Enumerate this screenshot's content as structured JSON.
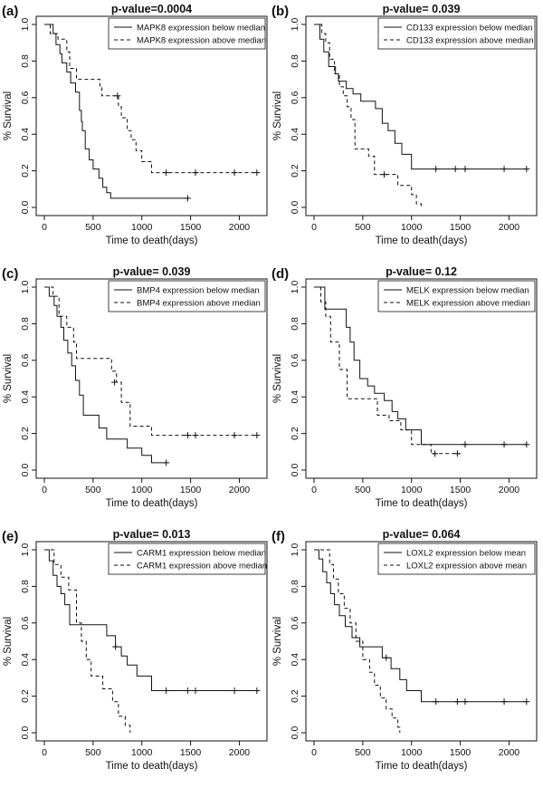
{
  "figure": {
    "time_label": "Time to death(days)",
    "y_label": "% Survival"
  },
  "colors": {
    "ink": "#111111",
    "background": "#ffffff"
  },
  "chart_data": [
    {
      "type": "line",
      "panel": "(a)",
      "title": "p-value=0.0004",
      "xlabel": "Time to death(days)",
      "ylabel": "% Survival",
      "xlim": [
        0,
        2200
      ],
      "ylim": [
        0,
        1.0
      ],
      "xticks": [
        0,
        500,
        1000,
        1500,
        2000
      ],
      "xtick_labels": [
        "0",
        "500",
        "1000",
        "1500",
        "2000"
      ],
      "yticks": [
        0,
        0.2,
        0.4,
        0.6,
        0.8,
        1.0
      ],
      "ytick_labels": [
        "0.0",
        "0.2",
        "0.4",
        "0.6",
        "0.8",
        "1.0"
      ],
      "series": [
        {
          "name": "MAPK8 expression below median",
          "style": "solid",
          "x": [
            0,
            90,
            120,
            160,
            180,
            230,
            270,
            320,
            360,
            380,
            390,
            420,
            460,
            500,
            560,
            600,
            640,
            680,
            1470
          ],
          "y": [
            1.0,
            0.95,
            0.89,
            0.84,
            0.79,
            0.74,
            0.68,
            0.63,
            0.53,
            0.47,
            0.42,
            0.32,
            0.26,
            0.21,
            0.16,
            0.11,
            0.08,
            0.05,
            0.05
          ],
          "censor_x": [
            1470
          ],
          "censor_y": [
            0.05
          ]
        },
        {
          "name": "MAPK8 expression above median",
          "style": "dashed",
          "x": [
            0,
            60,
            140,
            230,
            260,
            330,
            570,
            590,
            620,
            760,
            790,
            850,
            890,
            940,
            1000,
            1100,
            2180
          ],
          "y": [
            1.0,
            0.95,
            0.92,
            0.85,
            0.76,
            0.7,
            0.66,
            0.61,
            0.61,
            0.55,
            0.49,
            0.42,
            0.37,
            0.31,
            0.25,
            0.19,
            0.19
          ],
          "censor_x": [
            750,
            1250,
            1550,
            1950,
            2180
          ],
          "censor_y": [
            0.61,
            0.19,
            0.19,
            0.19,
            0.19
          ]
        }
      ]
    },
    {
      "type": "line",
      "panel": "(b)",
      "title": "p-value= 0.039",
      "xlabel": "Time to death(days)",
      "ylabel": "% Survival",
      "xlim": [
        0,
        2200
      ],
      "ylim": [
        0,
        1.0
      ],
      "xticks": [
        0,
        500,
        1000,
        1500,
        2000
      ],
      "xtick_labels": [
        "0",
        "500",
        "1000",
        "1500",
        "2000"
      ],
      "yticks": [
        0,
        0.2,
        0.4,
        0.6,
        0.8,
        1.0
      ],
      "ytick_labels": [
        "0.0",
        "0.2",
        "0.4",
        "0.6",
        "0.8",
        "1.0"
      ],
      "series": [
        {
          "name": "CD133 expression below median",
          "style": "solid",
          "x": [
            0,
            60,
            100,
            150,
            220,
            250,
            330,
            400,
            480,
            630,
            700,
            760,
            830,
            900,
            1000,
            2180
          ],
          "y": [
            1.0,
            0.92,
            0.85,
            0.77,
            0.73,
            0.69,
            0.65,
            0.62,
            0.58,
            0.54,
            0.46,
            0.42,
            0.35,
            0.29,
            0.21,
            0.21
          ],
          "censor_x": [
            1250,
            1450,
            1550,
            1950,
            2180
          ],
          "censor_y": [
            0.21,
            0.21,
            0.21,
            0.21,
            0.21
          ]
        },
        {
          "name": "CD133 expression above median",
          "style": "dashed",
          "x": [
            0,
            80,
            120,
            160,
            210,
            260,
            300,
            340,
            380,
            420,
            560,
            620,
            790,
            860,
            1000,
            1050,
            1100
          ],
          "y": [
            1.0,
            0.95,
            0.9,
            0.81,
            0.73,
            0.66,
            0.61,
            0.55,
            0.48,
            0.32,
            0.28,
            0.18,
            0.18,
            0.12,
            0.07,
            0.02,
            0.0
          ],
          "censor_x": [
            720
          ],
          "censor_y": [
            0.18
          ]
        }
      ]
    },
    {
      "type": "line",
      "panel": "(c)",
      "title": "p-value= 0.039",
      "xlabel": "Time to death(days)",
      "ylabel": "% Survival",
      "xlim": [
        0,
        2200
      ],
      "ylim": [
        0,
        1.0
      ],
      "xticks": [
        0,
        500,
        1000,
        1500,
        2000
      ],
      "xtick_labels": [
        "0",
        "500",
        "1000",
        "1500",
        "2000"
      ],
      "yticks": [
        0,
        0.2,
        0.4,
        0.6,
        0.8,
        1.0
      ],
      "ytick_labels": [
        "0.0",
        "0.2",
        "0.4",
        "0.6",
        "0.8",
        "1.0"
      ],
      "series": [
        {
          "name": "BMP4 expression below median",
          "style": "solid",
          "x": [
            0,
            50,
            100,
            130,
            170,
            200,
            240,
            280,
            320,
            360,
            400,
            560,
            640,
            850,
            1000,
            1100,
            1250
          ],
          "y": [
            1.0,
            0.95,
            0.9,
            0.84,
            0.78,
            0.71,
            0.64,
            0.57,
            0.49,
            0.41,
            0.3,
            0.23,
            0.17,
            0.12,
            0.08,
            0.04,
            0.04
          ],
          "censor_x": [
            1250
          ],
          "censor_y": [
            0.04
          ]
        },
        {
          "name": "BMP4 expression above median",
          "style": "dashed",
          "x": [
            0,
            90,
            150,
            230,
            300,
            330,
            640,
            690,
            740,
            790,
            880,
            1100,
            2180
          ],
          "y": [
            1.0,
            0.95,
            0.84,
            0.78,
            0.7,
            0.61,
            0.61,
            0.54,
            0.48,
            0.37,
            0.24,
            0.19,
            0.19
          ],
          "censor_x": [
            720,
            1470,
            1550,
            1950,
            2180
          ],
          "censor_y": [
            0.48,
            0.19,
            0.19,
            0.19,
            0.19
          ]
        }
      ]
    },
    {
      "type": "line",
      "panel": "(d)",
      "title": "p-value= 0.12",
      "xlabel": "Time to death(days)",
      "ylabel": "% Survival",
      "xlim": [
        0,
        2200
      ],
      "ylim": [
        0,
        1.0
      ],
      "xticks": [
        0,
        500,
        1000,
        1500,
        2000
      ],
      "xtick_labels": [
        "0",
        "500",
        "1000",
        "1500",
        "2000"
      ],
      "yticks": [
        0,
        0.2,
        0.4,
        0.6,
        0.8,
        1.0
      ],
      "ytick_labels": [
        "0.0",
        "0.2",
        "0.4",
        "0.6",
        "0.8",
        "1.0"
      ],
      "series": [
        {
          "name": "MELK expression below median",
          "style": "solid",
          "x": [
            0,
            110,
            230,
            330,
            370,
            410,
            470,
            550,
            620,
            720,
            800,
            860,
            940,
            1100,
            2180
          ],
          "y": [
            1.0,
            0.88,
            0.88,
            0.78,
            0.7,
            0.6,
            0.5,
            0.46,
            0.42,
            0.38,
            0.32,
            0.28,
            0.22,
            0.14,
            0.14
          ],
          "censor_x": [
            1550,
            1950,
            2180
          ],
          "censor_y": [
            0.14,
            0.14,
            0.14
          ]
        },
        {
          "name": "MELK expression above median",
          "style": "dashed",
          "x": [
            0,
            70,
            120,
            170,
            260,
            340,
            580,
            650,
            770,
            890,
            1000,
            1200,
            1500
          ],
          "y": [
            1.0,
            0.92,
            0.84,
            0.7,
            0.55,
            0.39,
            0.39,
            0.3,
            0.27,
            0.22,
            0.14,
            0.09,
            0.09
          ],
          "censor_x": [
            1240,
            1470
          ],
          "censor_y": [
            0.09,
            0.09
          ]
        }
      ]
    },
    {
      "type": "line",
      "panel": "(e)",
      "title": "p-value= 0.013",
      "xlabel": "Time to death(days)",
      "ylabel": "% Survival",
      "xlim": [
        0,
        2200
      ],
      "ylim": [
        0,
        1.0
      ],
      "xticks": [
        0,
        500,
        1000,
        1500,
        2000
      ],
      "xtick_labels": [
        "0",
        "500",
        "1000",
        "1500",
        "2000"
      ],
      "yticks": [
        0,
        0.2,
        0.4,
        0.6,
        0.8,
        1.0
      ],
      "ytick_labels": [
        "0.0",
        "0.2",
        "0.4",
        "0.6",
        "0.8",
        "1.0"
      ],
      "series": [
        {
          "name": "CARM1 expression below median",
          "style": "solid",
          "x": [
            0,
            50,
            90,
            130,
            170,
            210,
            260,
            320,
            640,
            730,
            790,
            850,
            950,
            1100,
            2180
          ],
          "y": [
            1.0,
            0.94,
            0.86,
            0.8,
            0.76,
            0.7,
            0.59,
            0.59,
            0.53,
            0.47,
            0.42,
            0.37,
            0.31,
            0.23,
            0.23
          ],
          "censor_x": [
            730,
            1250,
            1470,
            1550,
            1950,
            2180
          ],
          "censor_y": [
            0.47,
            0.23,
            0.23,
            0.23,
            0.23,
            0.23
          ]
        },
        {
          "name": "CARM1 expression above median",
          "style": "dashed",
          "x": [
            0,
            100,
            170,
            250,
            330,
            380,
            430,
            480,
            600,
            700,
            760,
            830,
            880
          ],
          "y": [
            1.0,
            0.92,
            0.85,
            0.78,
            0.6,
            0.5,
            0.4,
            0.31,
            0.24,
            0.17,
            0.09,
            0.04,
            0.0
          ],
          "censor_x": [],
          "censor_y": []
        }
      ]
    },
    {
      "type": "line",
      "panel": "(f)",
      "title": "p-value= 0.064",
      "xlabel": "Time to death(days)",
      "ylabel": "% Survival",
      "xlim": [
        0,
        2200
      ],
      "ylim": [
        0,
        1.0
      ],
      "xticks": [
        0,
        500,
        1000,
        1500,
        2000
      ],
      "xtick_labels": [
        "0",
        "500",
        "1000",
        "1500",
        "2000"
      ],
      "yticks": [
        0,
        0.2,
        0.4,
        0.6,
        0.8,
        1.0
      ],
      "ytick_labels": [
        "0.0",
        "0.2",
        "0.4",
        "0.6",
        "0.8",
        "1.0"
      ],
      "series": [
        {
          "name": "LOXL2 expression below mean",
          "style": "solid",
          "x": [
            0,
            50,
            90,
            130,
            170,
            210,
            260,
            320,
            390,
            470,
            600,
            700,
            790,
            880,
            950,
            1100,
            2180
          ],
          "y": [
            1.0,
            0.95,
            0.88,
            0.82,
            0.76,
            0.7,
            0.64,
            0.58,
            0.52,
            0.47,
            0.47,
            0.41,
            0.35,
            0.29,
            0.23,
            0.17,
            0.17
          ],
          "censor_x": [
            740,
            1250,
            1470,
            1550,
            1950,
            2180
          ],
          "censor_y": [
            0.41,
            0.17,
            0.17,
            0.17,
            0.17,
            0.17
          ]
        },
        {
          "name": "LOXL2 expression above mean",
          "style": "dashed",
          "x": [
            0,
            160,
            200,
            250,
            310,
            370,
            430,
            500,
            570,
            620,
            680,
            740,
            800,
            860,
            880
          ],
          "y": [
            1.0,
            0.92,
            0.84,
            0.76,
            0.68,
            0.6,
            0.5,
            0.4,
            0.33,
            0.26,
            0.19,
            0.13,
            0.08,
            0.03,
            0.0
          ],
          "censor_x": [],
          "censor_y": []
        }
      ]
    }
  ]
}
